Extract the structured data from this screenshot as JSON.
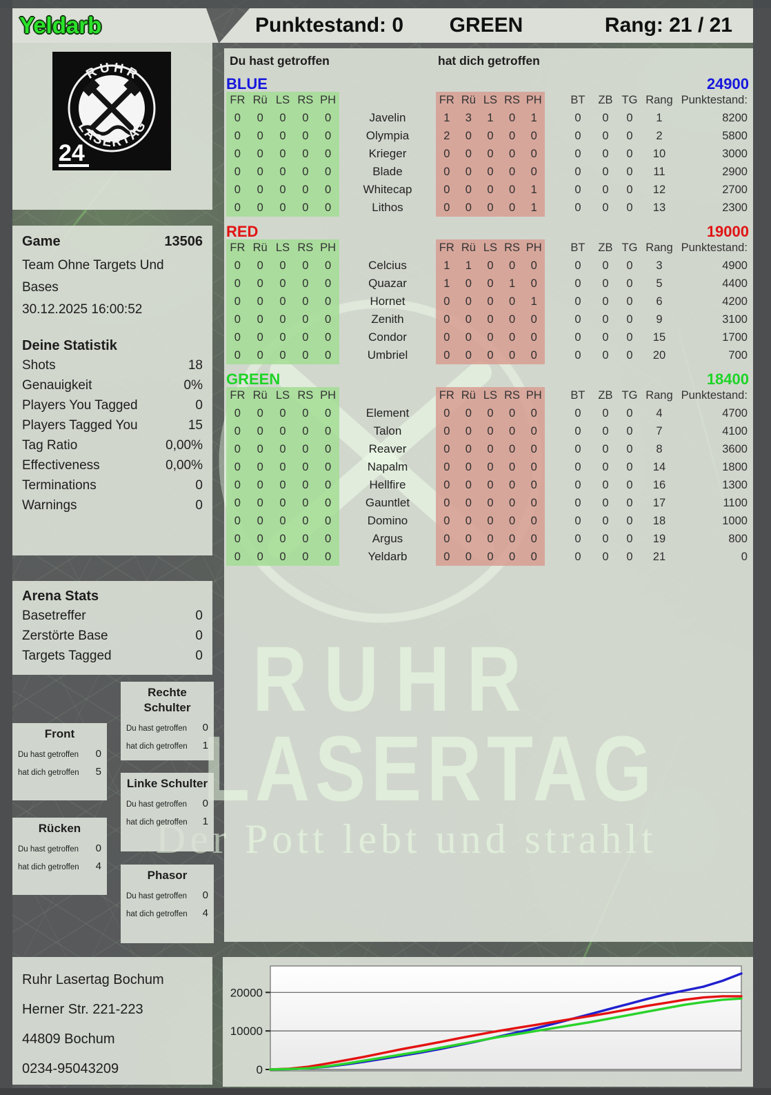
{
  "player_name": "Yeldarb",
  "header": {
    "score": "Punktestand: 0",
    "team": "GREEN",
    "rank": "Rang: 21 / 21"
  },
  "hit_labels": {
    "you": "Du hast getroffen",
    "them": "hat dich getroffen"
  },
  "sidebar": {
    "logo": {
      "top": "RUHR",
      "bottom": "LASERTAG",
      "badge": "24"
    },
    "game": {
      "label": "Game",
      "number": "13506",
      "mode": "Team Ohne Targets Und Bases",
      "datetime": "30.12.2025 16:00:52"
    },
    "stats": {
      "title": "Deine Statistik",
      "rows": [
        {
          "label": "Shots",
          "value": "18"
        },
        {
          "label": "Genauigkeit",
          "value": "0%"
        },
        {
          "label": "Players You Tagged",
          "value": "0"
        },
        {
          "label": "Players Tagged You",
          "value": "15"
        },
        {
          "label": "Tag Ratio",
          "value": "0,00%"
        },
        {
          "label": "Effectiveness",
          "value": "0,00%"
        },
        {
          "label": "Terminations",
          "value": "0"
        },
        {
          "label": "Warnings",
          "value": "0"
        }
      ]
    },
    "arena": {
      "title": "Arena Stats",
      "rows": [
        {
          "label": "Basetreffer",
          "value": "0"
        },
        {
          "label": "Zerstörte Base",
          "value": "0"
        },
        {
          "label": "Targets Tagged",
          "value": "0"
        }
      ]
    },
    "hitboxes": [
      {
        "title": "Front",
        "you": "0",
        "them": "5"
      },
      {
        "title": "Rücken",
        "you": "0",
        "them": "4"
      },
      {
        "title": "Rechte Schulter",
        "you": "0",
        "them": "1"
      },
      {
        "title": "Linke Schulter",
        "you": "0",
        "them": "1"
      },
      {
        "title": "Phasor",
        "you": "0",
        "them": "4"
      }
    ],
    "address": [
      "Ruhr Lasertag Bochum",
      "Herner Str. 221-223",
      "44809 Bochum",
      "0234-95043209"
    ]
  },
  "main": {
    "hit_cols": [
      "FR",
      "Rü",
      "LS",
      "RS",
      "PH"
    ],
    "extra_cols": [
      "BT",
      "ZB",
      "TG",
      "Rang",
      "Punktestand:"
    ],
    "teams": [
      {
        "name": "BLUE",
        "color": "#1717dd",
        "score": "24900",
        "rows": [
          {
            "you": [
              "0",
              "0",
              "0",
              "0",
              "0"
            ],
            "name": "Javelin",
            "them": [
              "1",
              "3",
              "1",
              "0",
              "1"
            ],
            "extras": [
              "0",
              "0",
              "0",
              "1",
              "8200"
            ]
          },
          {
            "you": [
              "0",
              "0",
              "0",
              "0",
              "0"
            ],
            "name": "Olympia",
            "them": [
              "2",
              "0",
              "0",
              "0",
              "0"
            ],
            "extras": [
              "0",
              "0",
              "0",
              "2",
              "5800"
            ]
          },
          {
            "you": [
              "0",
              "0",
              "0",
              "0",
              "0"
            ],
            "name": "Krieger",
            "them": [
              "0",
              "0",
              "0",
              "0",
              "0"
            ],
            "extras": [
              "0",
              "0",
              "0",
              "10",
              "3000"
            ]
          },
          {
            "you": [
              "0",
              "0",
              "0",
              "0",
              "0"
            ],
            "name": "Blade",
            "them": [
              "0",
              "0",
              "0",
              "0",
              "0"
            ],
            "extras": [
              "0",
              "0",
              "0",
              "11",
              "2900"
            ]
          },
          {
            "you": [
              "0",
              "0",
              "0",
              "0",
              "0"
            ],
            "name": "Whitecap",
            "them": [
              "0",
              "0",
              "0",
              "0",
              "1"
            ],
            "extras": [
              "0",
              "0",
              "0",
              "12",
              "2700"
            ]
          },
          {
            "you": [
              "0",
              "0",
              "0",
              "0",
              "0"
            ],
            "name": "Lithos",
            "them": [
              "0",
              "0",
              "0",
              "0",
              "1"
            ],
            "extras": [
              "0",
              "0",
              "0",
              "13",
              "2300"
            ]
          }
        ]
      },
      {
        "name": "RED",
        "color": "#e11313",
        "score": "19000",
        "rows": [
          {
            "you": [
              "0",
              "0",
              "0",
              "0",
              "0"
            ],
            "name": "Celcius",
            "them": [
              "1",
              "1",
              "0",
              "0",
              "0"
            ],
            "extras": [
              "0",
              "0",
              "0",
              "3",
              "4900"
            ]
          },
          {
            "you": [
              "0",
              "0",
              "0",
              "0",
              "0"
            ],
            "name": "Quazar",
            "them": [
              "1",
              "0",
              "0",
              "1",
              "0"
            ],
            "extras": [
              "0",
              "0",
              "0",
              "5",
              "4400"
            ]
          },
          {
            "you": [
              "0",
              "0",
              "0",
              "0",
              "0"
            ],
            "name": "Hornet",
            "them": [
              "0",
              "0",
              "0",
              "0",
              "1"
            ],
            "extras": [
              "0",
              "0",
              "0",
              "6",
              "4200"
            ]
          },
          {
            "you": [
              "0",
              "0",
              "0",
              "0",
              "0"
            ],
            "name": "Zenith",
            "them": [
              "0",
              "0",
              "0",
              "0",
              "0"
            ],
            "extras": [
              "0",
              "0",
              "0",
              "9",
              "3100"
            ]
          },
          {
            "you": [
              "0",
              "0",
              "0",
              "0",
              "0"
            ],
            "name": "Condor",
            "them": [
              "0",
              "0",
              "0",
              "0",
              "0"
            ],
            "extras": [
              "0",
              "0",
              "0",
              "15",
              "1700"
            ]
          },
          {
            "you": [
              "0",
              "0",
              "0",
              "0",
              "0"
            ],
            "name": "Umbriel",
            "them": [
              "0",
              "0",
              "0",
              "0",
              "0"
            ],
            "extras": [
              "0",
              "0",
              "0",
              "20",
              "700"
            ]
          }
        ]
      },
      {
        "name": "GREEN",
        "color": "#1ed427",
        "score": "18400",
        "rows": [
          {
            "you": [
              "0",
              "0",
              "0",
              "0",
              "0"
            ],
            "name": "Element",
            "them": [
              "0",
              "0",
              "0",
              "0",
              "0"
            ],
            "extras": [
              "0",
              "0",
              "0",
              "4",
              "4700"
            ]
          },
          {
            "you": [
              "0",
              "0",
              "0",
              "0",
              "0"
            ],
            "name": "Talon",
            "them": [
              "0",
              "0",
              "0",
              "0",
              "0"
            ],
            "extras": [
              "0",
              "0",
              "0",
              "7",
              "4100"
            ]
          },
          {
            "you": [
              "0",
              "0",
              "0",
              "0",
              "0"
            ],
            "name": "Reaver",
            "them": [
              "0",
              "0",
              "0",
              "0",
              "0"
            ],
            "extras": [
              "0",
              "0",
              "0",
              "8",
              "3600"
            ]
          },
          {
            "you": [
              "0",
              "0",
              "0",
              "0",
              "0"
            ],
            "name": "Napalm",
            "them": [
              "0",
              "0",
              "0",
              "0",
              "0"
            ],
            "extras": [
              "0",
              "0",
              "0",
              "14",
              "1800"
            ]
          },
          {
            "you": [
              "0",
              "0",
              "0",
              "0",
              "0"
            ],
            "name": "Hellfire",
            "them": [
              "0",
              "0",
              "0",
              "0",
              "0"
            ],
            "extras": [
              "0",
              "0",
              "0",
              "16",
              "1300"
            ]
          },
          {
            "you": [
              "0",
              "0",
              "0",
              "0",
              "0"
            ],
            "name": "Gauntlet",
            "them": [
              "0",
              "0",
              "0",
              "0",
              "0"
            ],
            "extras": [
              "0",
              "0",
              "0",
              "17",
              "1100"
            ]
          },
          {
            "you": [
              "0",
              "0",
              "0",
              "0",
              "0"
            ],
            "name": "Domino",
            "them": [
              "0",
              "0",
              "0",
              "0",
              "0"
            ],
            "extras": [
              "0",
              "0",
              "0",
              "18",
              "1000"
            ]
          },
          {
            "you": [
              "0",
              "0",
              "0",
              "0",
              "0"
            ],
            "name": "Argus",
            "them": [
              "0",
              "0",
              "0",
              "0",
              "0"
            ],
            "extras": [
              "0",
              "0",
              "0",
              "19",
              "800"
            ]
          },
          {
            "you": [
              "0",
              "0",
              "0",
              "0",
              "0"
            ],
            "name": "Yeldarb",
            "them": [
              "0",
              "0",
              "0",
              "0",
              "0"
            ],
            "extras": [
              "0",
              "0",
              "0",
              "21",
              "0"
            ]
          }
        ]
      }
    ]
  },
  "watermark": {
    "line1": "RUHR",
    "line2": "LASERTAG",
    "line3": "Der Pott lebt und strahlt"
  },
  "chart_data": {
    "type": "line",
    "title": "",
    "xlabel": "",
    "ylabel": "",
    "x_desc": "game time, normalized 0-1 (no x tick labels shown)",
    "ylim": [
      0,
      26500
    ],
    "yticks": [
      0,
      10000,
      20000
    ],
    "grid": true,
    "legend_position": "none",
    "series": [
      {
        "name": "BLUE",
        "color": "#2020cf",
        "values": [
          0,
          100,
          300,
          700,
          1300,
          2000,
          2800,
          3600,
          4400,
          5300,
          6300,
          7300,
          8400,
          9500,
          10600,
          11800,
          13100,
          14400,
          15700,
          17000,
          18300,
          19500,
          20500,
          21500,
          23000,
          24900
        ]
      },
      {
        "name": "RED",
        "color": "#e41212",
        "values": [
          0,
          200,
          700,
          1500,
          2400,
          3300,
          4300,
          5300,
          6200,
          7100,
          8100,
          9000,
          9900,
          10700,
          11500,
          12300,
          13100,
          13900,
          14700,
          15600,
          16500,
          17300,
          18100,
          18700,
          19000,
          19000
        ]
      },
      {
        "name": "GREEN",
        "color": "#2bd32b",
        "values": [
          0,
          100,
          300,
          800,
          1500,
          2300,
          3100,
          3900,
          4700,
          5600,
          6500,
          7400,
          8300,
          9100,
          9900,
          10700,
          11500,
          12300,
          13200,
          14100,
          15000,
          15900,
          16800,
          17500,
          18100,
          18400
        ]
      }
    ]
  }
}
